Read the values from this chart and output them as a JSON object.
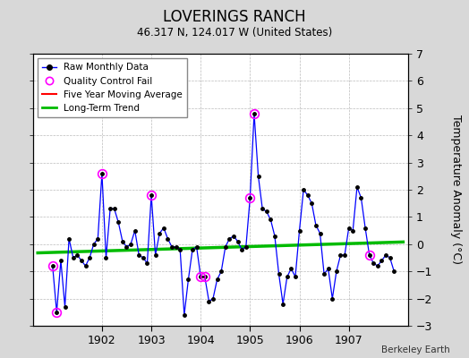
{
  "title": "LOVERINGS RANCH",
  "subtitle": "46.317 N, 124.017 W (United States)",
  "ylabel": "Temperature Anomaly (°C)",
  "credit": "Berkeley Earth",
  "ylim": [
    -3,
    7
  ],
  "yticks": [
    -3,
    -2,
    -1,
    0,
    1,
    2,
    3,
    4,
    5,
    6,
    7
  ],
  "bg_color": "#d8d8d8",
  "plot_bg": "#ffffff",
  "raw_x": [
    1901.0,
    1901.083,
    1901.167,
    1901.25,
    1901.333,
    1901.417,
    1901.5,
    1901.583,
    1901.667,
    1901.75,
    1901.833,
    1901.917,
    1902.0,
    1902.083,
    1902.167,
    1902.25,
    1902.333,
    1902.417,
    1902.5,
    1902.583,
    1902.667,
    1902.75,
    1902.833,
    1902.917,
    1903.0,
    1903.083,
    1903.167,
    1903.25,
    1903.333,
    1903.417,
    1903.5,
    1903.583,
    1903.667,
    1903.75,
    1903.833,
    1903.917,
    1904.0,
    1904.083,
    1904.167,
    1904.25,
    1904.333,
    1904.417,
    1904.5,
    1904.583,
    1904.667,
    1904.75,
    1904.833,
    1904.917,
    1905.0,
    1905.083,
    1905.167,
    1905.25,
    1905.333,
    1905.417,
    1905.5,
    1905.583,
    1905.667,
    1905.75,
    1905.833,
    1905.917,
    1906.0,
    1906.083,
    1906.167,
    1906.25,
    1906.333,
    1906.417,
    1906.5,
    1906.583,
    1906.667,
    1906.75,
    1906.833,
    1906.917,
    1907.0,
    1907.083,
    1907.167,
    1907.25,
    1907.333,
    1907.417,
    1907.5,
    1907.583,
    1907.667,
    1907.75,
    1907.833,
    1907.917
  ],
  "raw_y": [
    -0.8,
    -2.5,
    -0.6,
    -2.3,
    0.2,
    -0.5,
    -0.4,
    -0.6,
    -0.8,
    -0.5,
    0.0,
    0.2,
    2.6,
    -0.5,
    1.3,
    1.3,
    0.8,
    0.1,
    -0.1,
    0.0,
    0.5,
    -0.4,
    -0.5,
    -0.7,
    1.8,
    -0.4,
    0.4,
    0.6,
    0.2,
    -0.1,
    -0.1,
    -0.2,
    -2.6,
    -1.3,
    -0.2,
    -0.1,
    -1.2,
    -1.2,
    -2.1,
    -2.0,
    -1.3,
    -1.0,
    -0.1,
    0.2,
    0.3,
    0.1,
    -0.2,
    -0.1,
    1.7,
    4.8,
    2.5,
    1.3,
    1.2,
    0.9,
    0.3,
    -1.1,
    -2.2,
    -1.2,
    -0.9,
    -1.2,
    0.5,
    2.0,
    1.8,
    1.5,
    0.7,
    0.4,
    -1.1,
    -0.9,
    -2.0,
    -1.0,
    -0.4,
    -0.4,
    0.6,
    0.5,
    2.1,
    1.7,
    0.6,
    -0.4,
    -0.7,
    -0.8,
    -0.6,
    -0.4,
    -0.5,
    -1.0
  ],
  "qc_fail_x": [
    1901.0,
    1901.083,
    1902.0,
    1903.0,
    1904.0,
    1904.083,
    1905.0,
    1905.083,
    1907.417
  ],
  "qc_fail_y": [
    -0.8,
    -2.5,
    2.6,
    1.8,
    -1.2,
    -1.2,
    1.7,
    4.8,
    -0.4
  ],
  "trend_x": [
    1900.7,
    1908.1
  ],
  "trend_y": [
    -0.32,
    0.08
  ],
  "line_color": "#0000ff",
  "marker_color": "#000000",
  "qc_color": "#ff00ff",
  "trend_color": "#00bb00",
  "mavg_color": "#ff0000",
  "xticks": [
    1902,
    1903,
    1904,
    1905,
    1906,
    1907
  ],
  "xlim_left": 1900.6,
  "xlim_right": 1908.2
}
